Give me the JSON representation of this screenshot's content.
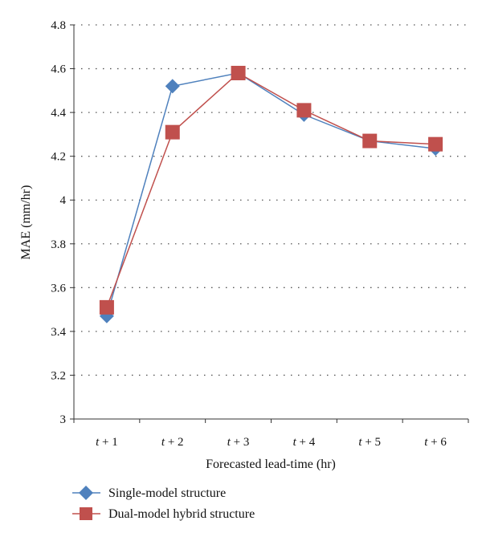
{
  "chart_data": {
    "type": "line",
    "title": "",
    "xlabel": "Forecasted lead-time (hr)",
    "ylabel": "MAE (mm/hr)",
    "categories": [
      {
        "var": "t",
        "rest": " + 1"
      },
      {
        "var": "t",
        "rest": " + 2"
      },
      {
        "var": "t",
        "rest": " + 3"
      },
      {
        "var": "t",
        "rest": " + 4"
      },
      {
        "var": "t",
        "rest": " + 5"
      },
      {
        "var": "t",
        "rest": " + 6"
      }
    ],
    "ylim": [
      3,
      4.8
    ],
    "yticks": [
      "3",
      "3.2",
      "3.4",
      "3.6",
      "3.8",
      "4",
      "4.2",
      "4.4",
      "4.6",
      "4.8"
    ],
    "grid": true,
    "legend_position": "bottom-left",
    "series": [
      {
        "name": "Single-model structure",
        "values": [
          3.47,
          4.52,
          4.58,
          4.39,
          4.27,
          4.235
        ],
        "color": "#4f81bd",
        "marker": "diamond"
      },
      {
        "name": "Dual-model hybrid structure",
        "values": [
          3.51,
          4.31,
          4.58,
          4.41,
          4.27,
          4.255
        ],
        "color": "#c0504d",
        "marker": "square"
      }
    ]
  }
}
